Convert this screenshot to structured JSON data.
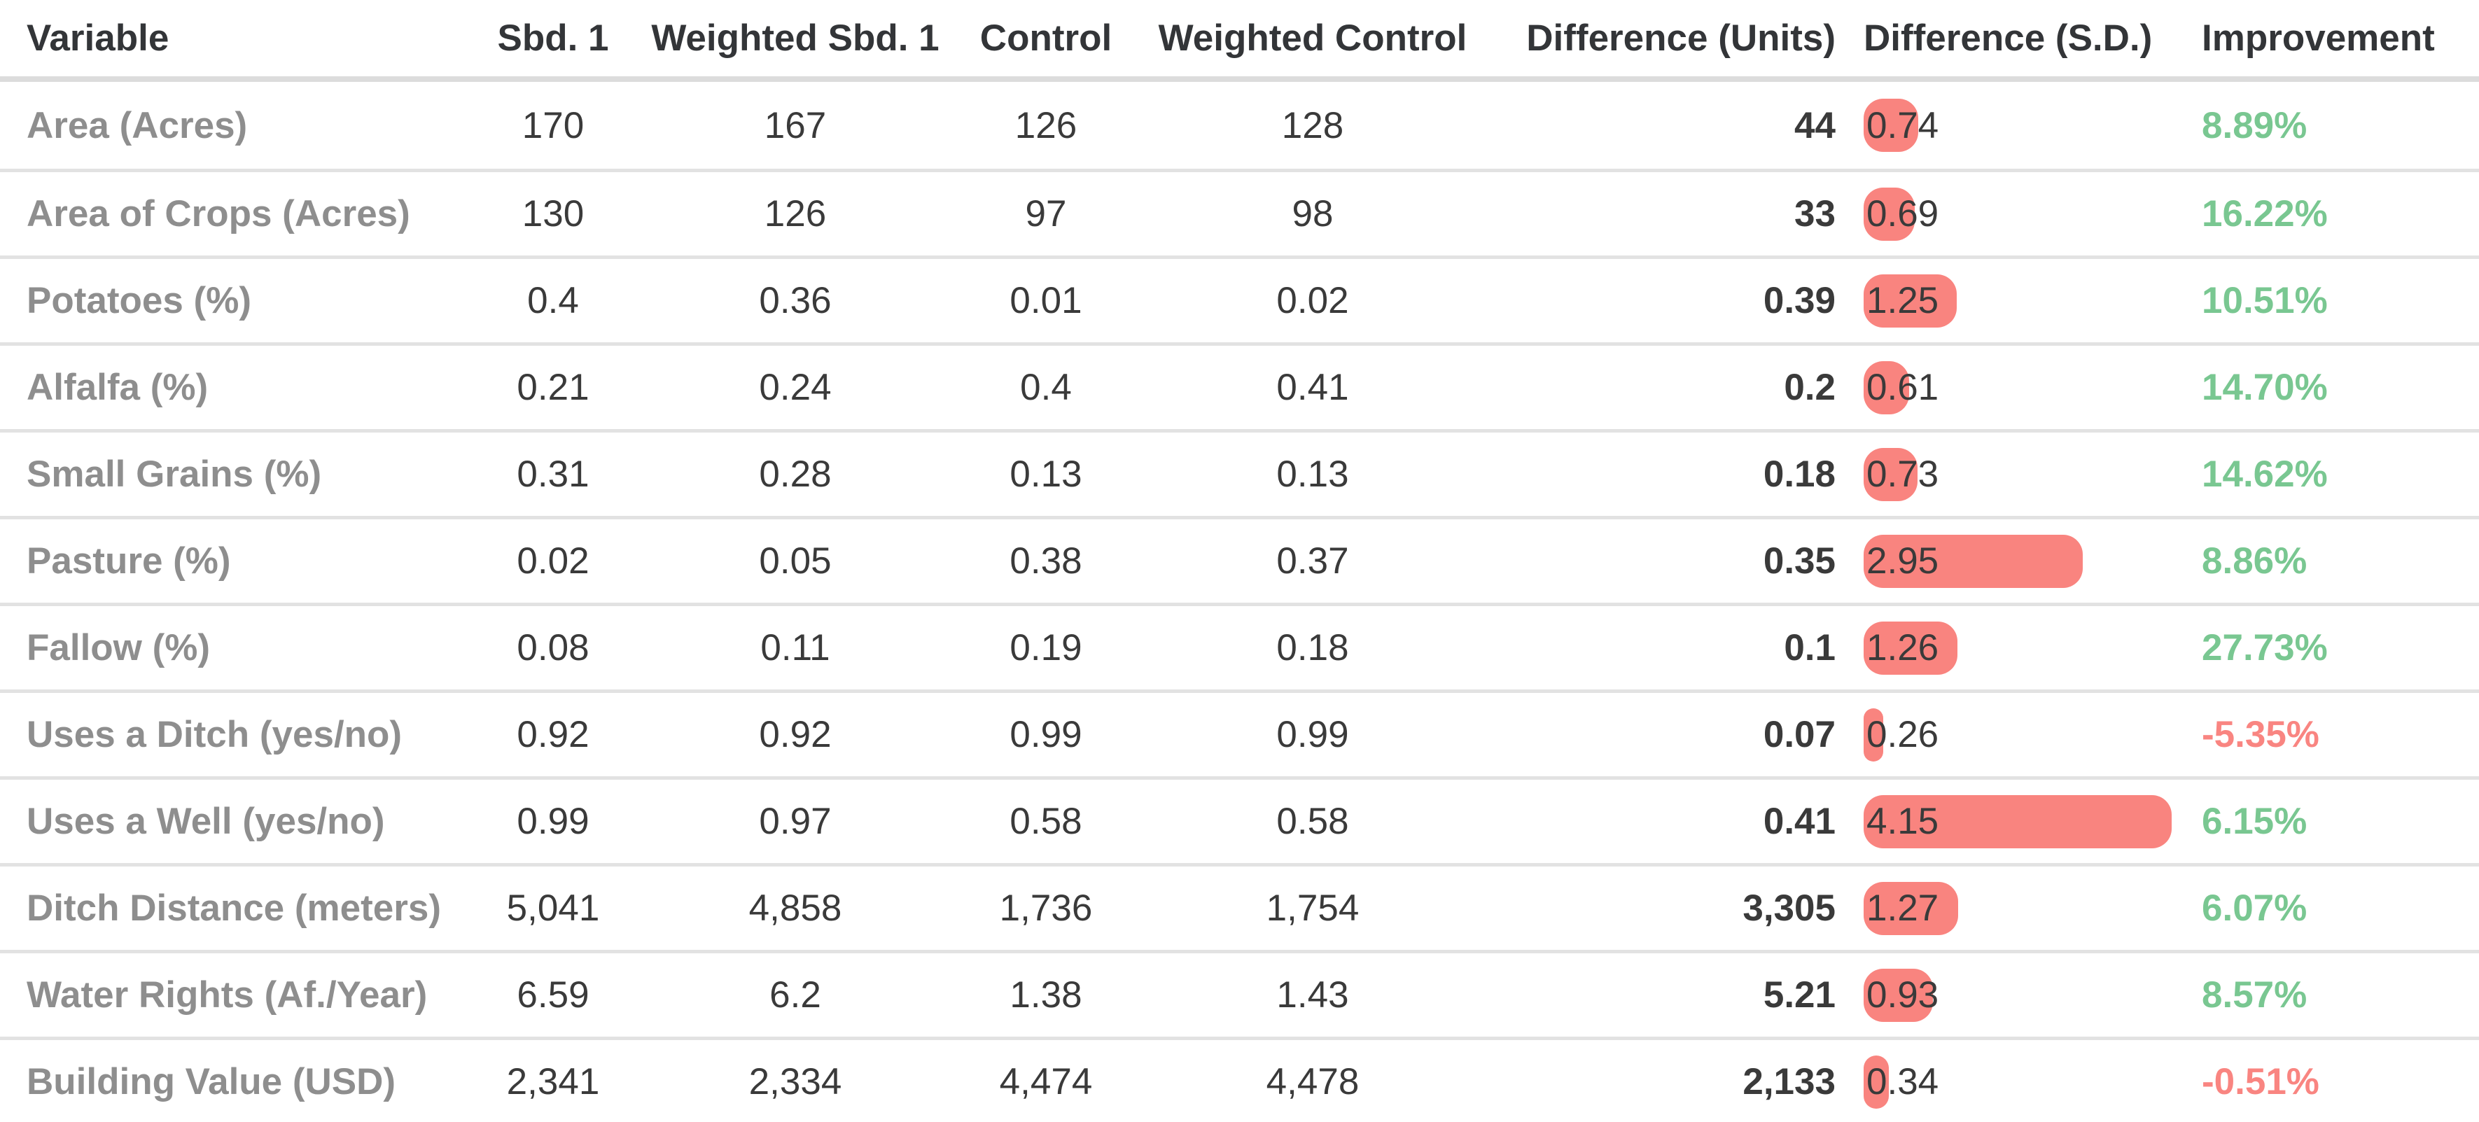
{
  "chart_data": {
    "type": "table",
    "title": "Subdivision vs Control comparison table",
    "legend_position": "none",
    "grid": "horizontal-row-dividers",
    "columns": [
      {
        "label": "Variable",
        "align": "left"
      },
      {
        "label": "Sbd. 1",
        "align": "center"
      },
      {
        "label": "Weighted Sbd. 1",
        "align": "center"
      },
      {
        "label": "Control",
        "align": "center"
      },
      {
        "label": "Weighted Control",
        "align": "center"
      },
      {
        "label": "Difference (Units)",
        "align": "right"
      },
      {
        "label": "Difference (S.D.)",
        "align": "left"
      },
      {
        "label": "Improvement",
        "align": "left"
      }
    ],
    "sd_bar_max_value": 4.15,
    "rows": [
      {
        "variable": "Area (Acres)",
        "sbd1": "170",
        "wsbd1": "167",
        "control": "126",
        "wcontrol": "128",
        "diff_units": "44",
        "diff_sd": "0.74",
        "improvement": "8.89%"
      },
      {
        "variable": "Area of Crops (Acres)",
        "sbd1": "130",
        "wsbd1": "126",
        "control": "97",
        "wcontrol": "98",
        "diff_units": "33",
        "diff_sd": "0.69",
        "improvement": "16.22%"
      },
      {
        "variable": "Potatoes (%)",
        "sbd1": "0.4",
        "wsbd1": "0.36",
        "control": "0.01",
        "wcontrol": "0.02",
        "diff_units": "0.39",
        "diff_sd": "1.25",
        "improvement": "10.51%"
      },
      {
        "variable": "Alfalfa (%)",
        "sbd1": "0.21",
        "wsbd1": "0.24",
        "control": "0.4",
        "wcontrol": "0.41",
        "diff_units": "0.2",
        "diff_sd": "0.61",
        "improvement": "14.70%"
      },
      {
        "variable": "Small Grains (%)",
        "sbd1": "0.31",
        "wsbd1": "0.28",
        "control": "0.13",
        "wcontrol": "0.13",
        "diff_units": "0.18",
        "diff_sd": "0.73",
        "improvement": "14.62%"
      },
      {
        "variable": "Pasture (%)",
        "sbd1": "0.02",
        "wsbd1": "0.05",
        "control": "0.38",
        "wcontrol": "0.37",
        "diff_units": "0.35",
        "diff_sd": "2.95",
        "improvement": "8.86%"
      },
      {
        "variable": "Fallow (%)",
        "sbd1": "0.08",
        "wsbd1": "0.11",
        "control": "0.19",
        "wcontrol": "0.18",
        "diff_units": "0.1",
        "diff_sd": "1.26",
        "improvement": "27.73%"
      },
      {
        "variable": "Uses a Ditch (yes/no)",
        "sbd1": "0.92",
        "wsbd1": "0.92",
        "control": "0.99",
        "wcontrol": "0.99",
        "diff_units": "0.07",
        "diff_sd": "0.26",
        "improvement": "-5.35%"
      },
      {
        "variable": "Uses a Well (yes/no)",
        "sbd1": "0.99",
        "wsbd1": "0.97",
        "control": "0.58",
        "wcontrol": "0.58",
        "diff_units": "0.41",
        "diff_sd": "4.15",
        "improvement": "6.15%"
      },
      {
        "variable": "Ditch Distance (meters)",
        "sbd1": "5,041",
        "wsbd1": "4,858",
        "control": "1,736",
        "wcontrol": "1,754",
        "diff_units": "3,305",
        "diff_sd": "1.27",
        "improvement": "6.07%"
      },
      {
        "variable": "Water Rights (Af./Year)",
        "sbd1": "6.59",
        "wsbd1": "6.2",
        "control": "1.38",
        "wcontrol": "1.43",
        "diff_units": "5.21",
        "diff_sd": "0.93",
        "improvement": "8.57%"
      },
      {
        "variable": "Building Value (USD)",
        "sbd1": "2,341",
        "wsbd1": "2,334",
        "control": "4,474",
        "wcontrol": "4,478",
        "diff_units": "2,133",
        "diff_sd": "0.34",
        "improvement": "-0.51%"
      }
    ]
  },
  "colors": {
    "bar": "#F9847F",
    "positive": "#79C791",
    "negative": "#F98581",
    "label": "#8E8E8E",
    "value": "#3A3A3A",
    "header": "#333538",
    "row_divider": "#E2E2E2",
    "header_divider": "#DCDCDC",
    "background": "#FFFFFF"
  }
}
